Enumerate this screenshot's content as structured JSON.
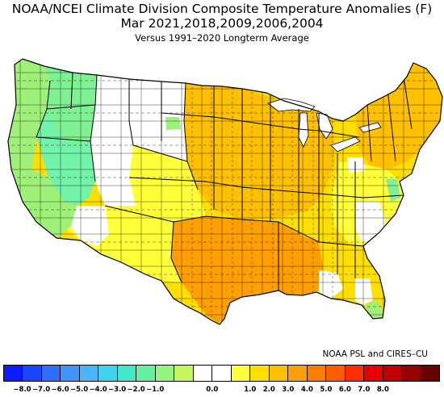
{
  "title": {
    "line1": "NOAA/NCEI Climate Division Composite Temperature Anomalies (F)",
    "line2": "Mar  2021,2018,2009,2006,2004",
    "line3": "Versus 1991–2020 Longterm Average"
  },
  "credit": "NOAA PSL and CIRES–CU",
  "colorbar": {
    "colors": [
      "#0b1cff",
      "#1a46ff",
      "#2e6eff",
      "#3f95ff",
      "#48b6ff",
      "#3fd3f0",
      "#3fe8c6",
      "#62f2a2",
      "#90f67d",
      "#c6f65e",
      "#ffffff",
      "#ffffff",
      "#ffff3a",
      "#ffdf00",
      "#ffc000",
      "#ffa000",
      "#ff7e00",
      "#ff5c00",
      "#ff2e00",
      "#e80000",
      "#c00000",
      "#970000",
      "#6b0000"
    ],
    "labels": [
      "−8.0",
      "−7.0",
      "−6.0",
      "−5.0",
      "−4.0",
      "−3.0",
      "−2.0",
      "−1.0",
      "0.0",
      "1.0",
      "2.0",
      "3.0",
      "4.0",
      "5.0",
      "6.0",
      "7.0",
      "8.0"
    ]
  },
  "map_colors": {
    "lightgreen": "#9ff079",
    "midgreen": "#7ef292",
    "cyangreen": "#72f3a9",
    "white": "#ffffff",
    "yellow": "#ffff3a",
    "gold": "#ffdf00",
    "amber": "#ffc000",
    "orange": "#ffa000"
  }
}
